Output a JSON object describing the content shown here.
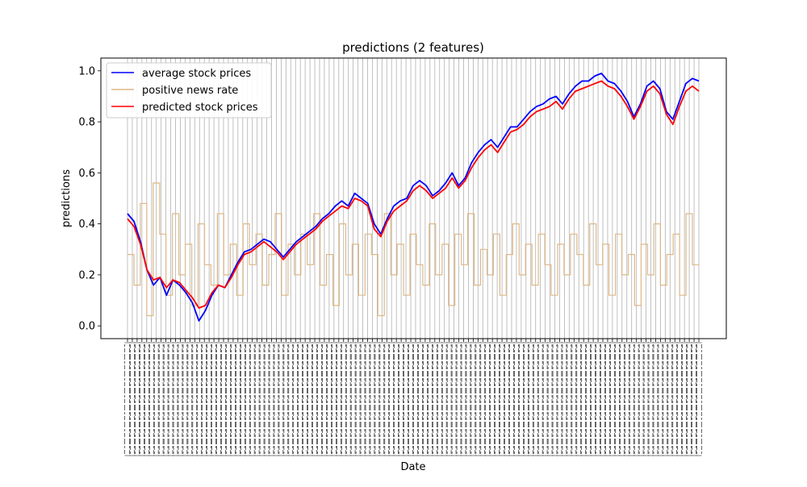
{
  "chart_data": {
    "type": "line",
    "title": "predictions (2 features)",
    "xlabel": "Date",
    "ylabel": "predictions",
    "ylim": [
      -0.05,
      1.05
    ],
    "y_ticks": [
      0.0,
      0.2,
      0.4,
      0.6,
      0.8,
      1.0
    ],
    "y_tick_labels": [
      "0.0",
      "0.2",
      "0.4",
      "0.6",
      "0.8",
      "1.0"
    ],
    "grid": "vertical",
    "legend": "top-left",
    "x_tick_labels_note": "dense rotated date labels (illegible)",
    "series": [
      {
        "name": "average stock prices",
        "color": "#0000ff",
        "values": [
          0.44,
          0.41,
          0.33,
          0.22,
          0.16,
          0.19,
          0.12,
          0.18,
          0.16,
          0.13,
          0.09,
          0.02,
          0.06,
          0.12,
          0.16,
          0.15,
          0.2,
          0.25,
          0.29,
          0.3,
          0.32,
          0.34,
          0.33,
          0.3,
          0.27,
          0.3,
          0.33,
          0.35,
          0.37,
          0.39,
          0.42,
          0.44,
          0.47,
          0.49,
          0.47,
          0.52,
          0.5,
          0.48,
          0.4,
          0.36,
          0.42,
          0.47,
          0.49,
          0.5,
          0.55,
          0.57,
          0.55,
          0.51,
          0.53,
          0.56,
          0.6,
          0.55,
          0.58,
          0.64,
          0.68,
          0.71,
          0.73,
          0.7,
          0.74,
          0.78,
          0.78,
          0.81,
          0.84,
          0.86,
          0.87,
          0.89,
          0.9,
          0.87,
          0.91,
          0.94,
          0.96,
          0.96,
          0.98,
          0.99,
          0.96,
          0.95,
          0.92,
          0.88,
          0.82,
          0.87,
          0.94,
          0.96,
          0.93,
          0.84,
          0.81,
          0.88,
          0.95,
          0.97,
          0.96
        ]
      },
      {
        "name": "positive news rate",
        "color": "#deb887",
        "values": [
          0.28,
          0.16,
          0.48,
          0.04,
          0.56,
          0.36,
          0.12,
          0.44,
          0.2,
          0.32,
          0.08,
          0.4,
          0.24,
          0.16,
          0.44,
          0.2,
          0.32,
          0.12,
          0.4,
          0.24,
          0.36,
          0.16,
          0.28,
          0.44,
          0.12,
          0.32,
          0.2,
          0.36,
          0.24,
          0.44,
          0.16,
          0.28,
          0.08,
          0.4,
          0.2,
          0.32,
          0.12,
          0.36,
          0.28,
          0.04,
          0.44,
          0.2,
          0.32,
          0.12,
          0.36,
          0.24,
          0.16,
          0.4,
          0.2,
          0.32,
          0.08,
          0.36,
          0.24,
          0.44,
          0.16,
          0.3,
          0.2,
          0.36,
          0.12,
          0.28,
          0.4,
          0.2,
          0.32,
          0.16,
          0.36,
          0.24,
          0.12,
          0.32,
          0.2,
          0.36,
          0.28,
          0.16,
          0.4,
          0.24,
          0.32,
          0.12,
          0.36,
          0.2,
          0.28,
          0.08,
          0.32,
          0.2,
          0.4,
          0.16,
          0.28,
          0.36,
          0.12,
          0.44,
          0.24
        ]
      },
      {
        "name": "predicted stock prices",
        "color": "#ff0000",
        "values": [
          0.42,
          0.39,
          0.32,
          0.22,
          0.18,
          0.19,
          0.15,
          0.18,
          0.17,
          0.14,
          0.11,
          0.07,
          0.08,
          0.13,
          0.16,
          0.15,
          0.19,
          0.24,
          0.28,
          0.29,
          0.31,
          0.33,
          0.31,
          0.29,
          0.26,
          0.29,
          0.32,
          0.34,
          0.36,
          0.38,
          0.41,
          0.43,
          0.45,
          0.47,
          0.46,
          0.5,
          0.49,
          0.47,
          0.38,
          0.35,
          0.41,
          0.45,
          0.47,
          0.49,
          0.53,
          0.55,
          0.53,
          0.5,
          0.52,
          0.54,
          0.58,
          0.54,
          0.57,
          0.62,
          0.66,
          0.69,
          0.71,
          0.68,
          0.72,
          0.76,
          0.77,
          0.79,
          0.82,
          0.84,
          0.85,
          0.86,
          0.88,
          0.85,
          0.89,
          0.92,
          0.93,
          0.94,
          0.95,
          0.96,
          0.94,
          0.93,
          0.9,
          0.86,
          0.81,
          0.86,
          0.92,
          0.94,
          0.91,
          0.83,
          0.79,
          0.86,
          0.92,
          0.94,
          0.92
        ]
      }
    ]
  }
}
